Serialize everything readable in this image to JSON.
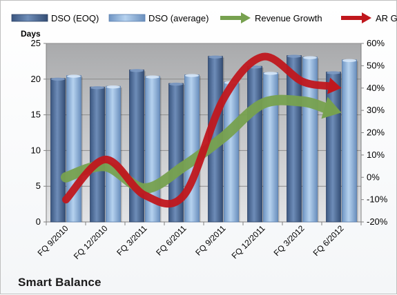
{
  "chart_data": {
    "type": "bar",
    "categories": [
      "FQ 9/2010",
      "FQ 12/2010",
      "FQ 3/2011",
      "FQ 6/2011",
      "FQ 9/2011",
      "FQ 12/2011",
      "FQ 3/2012",
      "FQ 6/2012"
    ],
    "series": [
      {
        "name": "DSO (EOQ)",
        "kind": "bar",
        "axis": "left",
        "color": "#4f6e99",
        "values": [
          20.1,
          18.9,
          21.3,
          19.4,
          23.2,
          21.8,
          23.3,
          21.0
        ]
      },
      {
        "name": "DSO (average)",
        "kind": "bar",
        "axis": "left",
        "color": "#8fb4de",
        "values": [
          20.5,
          19.0,
          20.4,
          20.6,
          19.6,
          20.9,
          23.1,
          22.7
        ]
      },
      {
        "name": "Revenue Growth",
        "kind": "arrow-line",
        "axis": "right",
        "color": "#77a14f",
        "values": [
          0,
          5,
          -5,
          5,
          18,
          33,
          34,
          29
        ]
      },
      {
        "name": "AR Growth",
        "kind": "arrow-line",
        "axis": "right",
        "color": "#c0171d",
        "values": [
          -10,
          8,
          -8,
          -8,
          35,
          54,
          43,
          40
        ]
      }
    ],
    "ylabel": "Days",
    "ylim": [
      0,
      25
    ],
    "yticks": [
      "0",
      "5",
      "10",
      "15",
      "20",
      "25"
    ],
    "y2lim": [
      -20,
      60
    ],
    "y2ticks": [
      "-20%",
      "-10%",
      "0%",
      "10%",
      "20%",
      "30%",
      "40%",
      "50%",
      "60%"
    ],
    "grid": true,
    "legend": "top",
    "company": "Smart Balance"
  }
}
